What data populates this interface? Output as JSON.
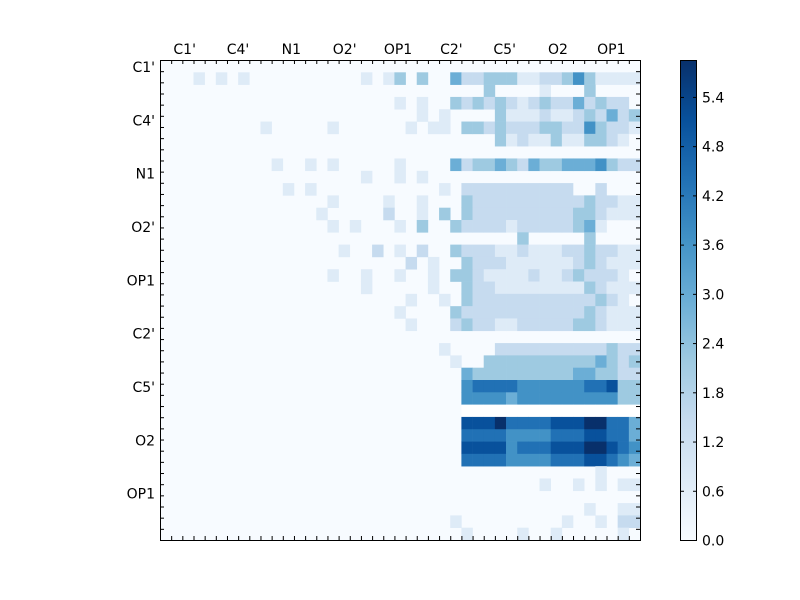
{
  "chart_data": {
    "type": "heatmap",
    "title": "",
    "xlabel": "",
    "ylabel": "",
    "x_tick_labels": [
      "C1'",
      "C4'",
      "N1",
      "O2'",
      "OP1",
      "C2'",
      "C5'",
      "O2",
      "OP1"
    ],
    "y_tick_labels": [
      "C1'",
      "C4'",
      "N1",
      "O2'",
      "OP1",
      "C2'",
      "C5'",
      "O2",
      "OP1"
    ],
    "colorbar": {
      "min": 0.0,
      "max": 5.85,
      "ticks": [
        "0.0",
        "0.6",
        "1.2",
        "1.8",
        "2.4",
        "3.0",
        "3.6",
        "4.2",
        "4.8",
        "5.4"
      ],
      "colormap": "Blues",
      "colors": [
        "#f7fbff",
        "#deebf7",
        "#c6dbef",
        "#9ecae1",
        "#6baed6",
        "#4292c6",
        "#2171b5",
        "#08519c",
        "#08306b"
      ]
    },
    "grid_size": 43,
    "cell_values_note": "",
    "values": [
      "...........................................",
      "...1.1.1..........1.13.3..42233311223531111",
      ".............................3....1...3....",
      ".....................1.1..3232321232242322.",
      ".......................1.1....31112112324231",
      ".........1.....1......1.11.3323222332253221",
      "..............................312113113321.",
      "...................................................",
      "..........1..1.1.....1....42334324334445322",
      "..................1..1.1...................",
      "...........1.1...........1.2222222222..2...",
      "...............1....1..1...3222222222232211",
      "..............1.....2..1.3.3222222222332111",
      "...............1.1...1.3..32222122222341...",
      "................................3.....3.....",
      "................1..2.1.2..32221121112232211",
      "......................2.1..3222111111232111",
      "...............1..1..1..1.3321111211232221",
      "..................1.....1..3221111111132111",
      "......................1..1.322222222222321.",
      ".....................1....32222222222232111",
      "......................1...23221122222332111",
      ".............................................",
      ".........................1....2222222222322.",
      "..........................1..3333333333432332",
      "...........................43333333334433222",
      "...........................56666555555667333",
      "...........................5555455555555533",
      "...........................0000000000000000",
      "...........................77786666777886643",
      "...........................66665555666776643",
      "...........................77775666777887654",
      "...........................66665555666776543",
      ".......................................1.....",
      "..................................1..1.1.111",
      "...........................................",
      "......................................1..111",
      "..........................1.........1..1.222",
      "...........................1....1..1.....1."
    ]
  }
}
